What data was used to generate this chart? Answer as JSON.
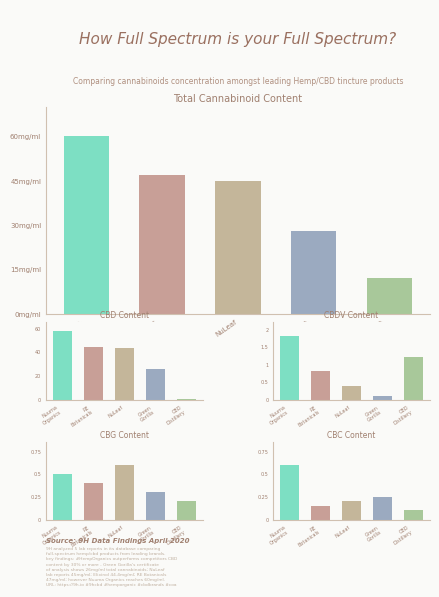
{
  "title": "How Full Spectrum is your Full Spectrum?",
  "subtitle": "Comparing cannabinoids concentration amongst leading Hemp/CBD tincture products",
  "brands": [
    "Nuuma\nOrganics",
    "RE Botanicals",
    "NuLeaf",
    "Green Gorilla",
    "CBD Distillery"
  ],
  "brands_short": [
    "Nuuma\nOrganics",
    "RE\nBotanicals",
    "NuLeaf",
    "Green\nGorilla",
    "CBD\nDistillery"
  ],
  "colors": [
    "#7DDFC3",
    "#C89F97",
    "#C4B69A",
    "#9BAAC0",
    "#A8C89A"
  ],
  "total_cannabinoid": [
    60,
    47,
    45,
    28,
    12
  ],
  "total_yticks": [
    0,
    15,
    30,
    45,
    60
  ],
  "total_ylabels": [
    "0mg/ml",
    "15mg/ml",
    "30mg/ml",
    "45mg/ml",
    "60mg/ml"
  ],
  "cbd_content": [
    58,
    44,
    43,
    26,
    0.5
  ],
  "cbd_yticks": [
    0,
    20,
    40,
    60
  ],
  "cbd_ylabels": [
    "0",
    "20",
    "40",
    "60"
  ],
  "cbdv_content": [
    1.8,
    0.8,
    0.4,
    0.1,
    1.2
  ],
  "cbdv_yticks": [
    0,
    0.5,
    1.0,
    1.5,
    2.0
  ],
  "cbdv_ylabels": [
    "0",
    "0.5",
    "1",
    "1.5",
    "2"
  ],
  "cbg_content": [
    0.5,
    0.4,
    0.6,
    0.3,
    0.2
  ],
  "cbg_yticks": [
    0,
    0.25,
    0.5,
    0.75
  ],
  "cbg_ylabels": [
    "0",
    "0.25",
    "0.5",
    "0.75"
  ],
  "cbc_content": [
    0.6,
    0.15,
    0.2,
    0.25,
    0.1
  ],
  "cbc_yticks": [
    0,
    0.25,
    0.5,
    0.75
  ],
  "cbc_ylabels": [
    "0",
    "0.25",
    "0.5",
    "0.75"
  ],
  "source_text": "Source: 9H Data Findings April 2020",
  "bg_color": "#FAFAF8",
  "text_color": "#A08070",
  "title_color": "#9A7060",
  "subtitle_color": "#B09080"
}
